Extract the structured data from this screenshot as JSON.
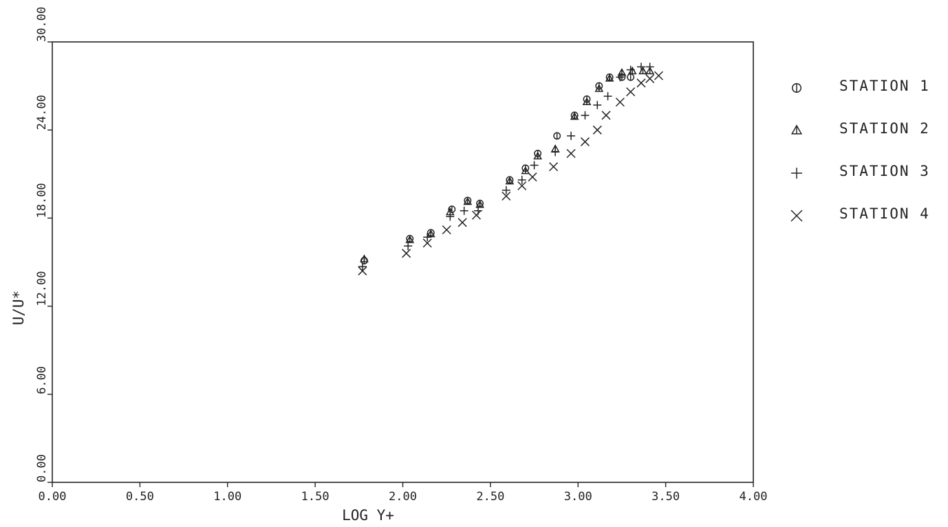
{
  "chart_data": {
    "type": "scatter",
    "title": "",
    "xlabel": "LOG Y+",
    "ylabel": "U/U*",
    "xlim": [
      0,
      4
    ],
    "ylim": [
      0,
      30
    ],
    "xticks": [
      "0.00",
      "0.50",
      "1.00",
      "1.50",
      "2.00",
      "2.50",
      "3.00",
      "3.50",
      "4.00"
    ],
    "yticks": [
      "0.00",
      "6.00",
      "12.00",
      "18.00",
      "24.00",
      "30.00"
    ],
    "grid": false,
    "legend_position": "right",
    "series": [
      {
        "name": "STATION 1",
        "marker": "circle",
        "points": [
          [
            1.78,
            15.1
          ],
          [
            2.04,
            16.6
          ],
          [
            2.16,
            17.0
          ],
          [
            2.28,
            18.6
          ],
          [
            2.37,
            19.2
          ],
          [
            2.44,
            19.0
          ],
          [
            2.61,
            20.6
          ],
          [
            2.7,
            21.4
          ],
          [
            2.77,
            22.4
          ],
          [
            2.88,
            23.6
          ],
          [
            2.98,
            25.0
          ],
          [
            3.05,
            26.1
          ],
          [
            3.12,
            27.0
          ],
          [
            3.18,
            27.6
          ],
          [
            3.25,
            27.6
          ],
          [
            3.3,
            27.6
          ]
        ]
      },
      {
        "name": "STATION 2",
        "marker": "triangle",
        "points": [
          [
            1.78,
            15.2
          ],
          [
            2.04,
            16.5
          ],
          [
            2.16,
            16.9
          ],
          [
            2.27,
            18.4
          ],
          [
            2.37,
            19.1
          ],
          [
            2.44,
            18.9
          ],
          [
            2.61,
            20.5
          ],
          [
            2.7,
            21.2
          ],
          [
            2.77,
            22.2
          ],
          [
            2.87,
            22.7
          ],
          [
            2.98,
            24.9
          ],
          [
            3.05,
            25.9
          ],
          [
            3.12,
            26.8
          ],
          [
            3.18,
            27.5
          ],
          [
            3.25,
            27.9
          ],
          [
            3.31,
            28.0
          ],
          [
            3.37,
            28.0
          ],
          [
            3.41,
            28.0
          ]
        ]
      },
      {
        "name": "STATION 3",
        "marker": "plus",
        "points": [
          [
            1.77,
            14.7
          ],
          [
            2.03,
            16.1
          ],
          [
            2.14,
            16.7
          ],
          [
            2.27,
            18.1
          ],
          [
            2.35,
            18.5
          ],
          [
            2.43,
            18.5
          ],
          [
            2.59,
            19.9
          ],
          [
            2.68,
            20.6
          ],
          [
            2.75,
            21.6
          ],
          [
            2.87,
            22.5
          ],
          [
            2.96,
            23.6
          ],
          [
            3.04,
            25.0
          ],
          [
            3.11,
            25.7
          ],
          [
            3.17,
            26.3
          ],
          [
            3.24,
            27.6
          ],
          [
            3.3,
            28.1
          ],
          [
            3.36,
            28.3
          ],
          [
            3.41,
            28.3
          ]
        ]
      },
      {
        "name": "STATION 4",
        "marker": "x",
        "points": [
          [
            1.77,
            14.4
          ],
          [
            2.02,
            15.6
          ],
          [
            2.14,
            16.3
          ],
          [
            2.25,
            17.2
          ],
          [
            2.34,
            17.7
          ],
          [
            2.42,
            18.2
          ],
          [
            2.59,
            19.5
          ],
          [
            2.68,
            20.2
          ],
          [
            2.74,
            20.8
          ],
          [
            2.86,
            21.5
          ],
          [
            2.96,
            22.4
          ],
          [
            3.04,
            23.2
          ],
          [
            3.11,
            24.0
          ],
          [
            3.16,
            25.0
          ],
          [
            3.24,
            25.9
          ],
          [
            3.3,
            26.6
          ],
          [
            3.36,
            27.2
          ],
          [
            3.41,
            27.5
          ],
          [
            3.46,
            27.7
          ]
        ]
      }
    ]
  }
}
